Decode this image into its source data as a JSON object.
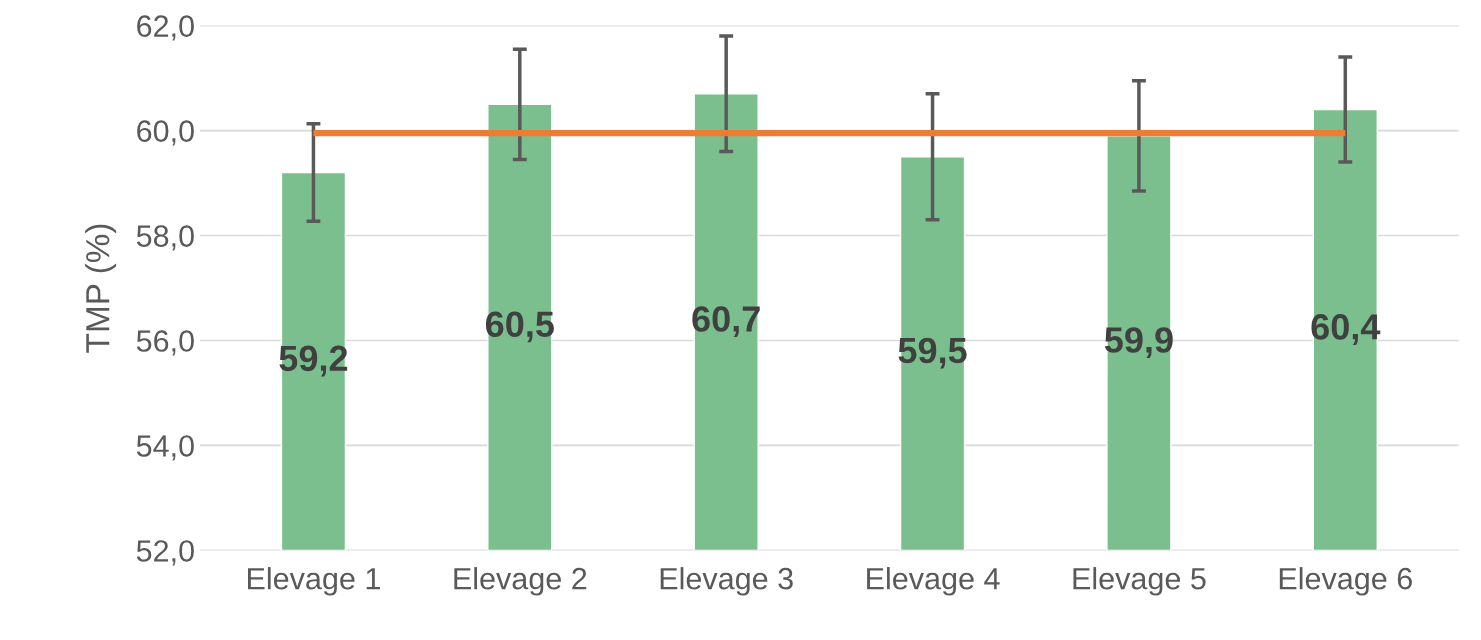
{
  "chart_data": {
    "type": "bar",
    "ylabel": "TMP (%)",
    "categories": [
      "Elevage 1",
      "Elevage 2",
      "Elevage 3",
      "Elevage 4",
      "Elevage 5",
      "Elevage 6"
    ],
    "series": [
      {
        "color": "#7bbf8e",
        "values": [
          59.2,
          60.5,
          60.7,
          59.5,
          59.9,
          60.4
        ],
        "errors": [
          0.93,
          1.05,
          1.1,
          1.2,
          1.05,
          1.0
        ],
        "value_labels": [
          "59,2",
          "60,5",
          "60,7",
          "59,5",
          "59,9",
          "60,4"
        ]
      },
      {
        "type": "line",
        "color": "#ed7d31",
        "values": [
          59.95,
          59.95,
          59.95,
          59.95,
          59.95,
          59.95
        ]
      }
    ],
    "ylim": [
      52,
      62
    ],
    "yticks": [
      {
        "value": 52,
        "label": "52,0"
      },
      {
        "value": 54,
        "label": "54,0"
      },
      {
        "value": 56,
        "label": "56,0"
      },
      {
        "value": 58,
        "label": "58,0"
      },
      {
        "value": 60,
        "label": "60,0"
      },
      {
        "value": 62,
        "label": "62,0"
      }
    ],
    "grid": "y"
  }
}
